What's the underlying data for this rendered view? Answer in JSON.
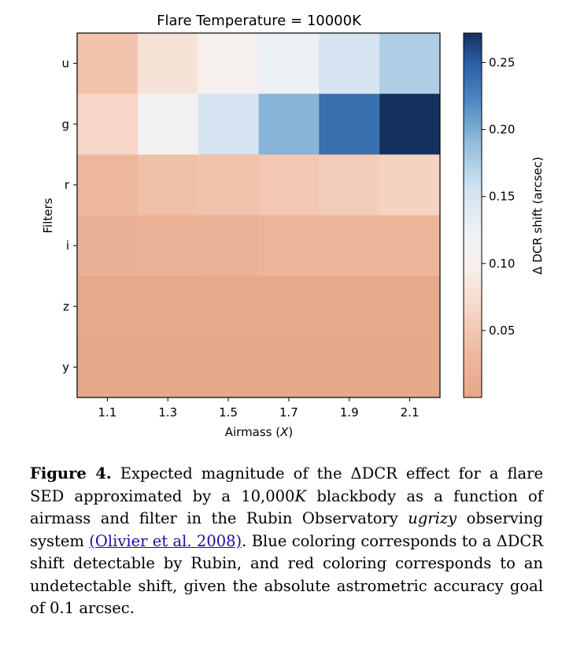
{
  "chart_data": {
    "type": "heatmap",
    "title": "Flare Temperature = 10000K",
    "xlabel": "Airmass (X)",
    "ylabel": "Filters",
    "x": [
      "1.1",
      "1.3",
      "1.5",
      "1.7",
      "1.9",
      "2.1"
    ],
    "y": [
      "u",
      "g",
      "r",
      "i",
      "z",
      "y"
    ],
    "values": [
      [
        0.045,
        0.08,
        0.105,
        0.125,
        0.15,
        0.175
      ],
      [
        0.065,
        0.11,
        0.15,
        0.195,
        0.238,
        0.272
      ],
      [
        0.03,
        0.04,
        0.045,
        0.05,
        0.055,
        0.062
      ],
      [
        0.018,
        0.02,
        0.022,
        0.024,
        0.026,
        0.028
      ],
      [
        0.004,
        0.004,
        0.004,
        0.004,
        0.004,
        0.004
      ],
      [
        0.002,
        0.002,
        0.002,
        0.002,
        0.002,
        0.002
      ]
    ],
    "colorbar": {
      "label": "Δ DCR shift (arcsec)",
      "range": [
        0.0,
        0.272
      ],
      "ticks": [
        0.05,
        0.1,
        0.15,
        0.2,
        0.25
      ],
      "tick_labels": [
        "0.05",
        "0.10",
        "0.15",
        "0.20",
        "0.25"
      ]
    },
    "colors": {
      "low": "#e6a789",
      "mid": "#f8f3f1",
      "high": "#14305e"
    }
  },
  "caption": {
    "label": "Figure 4.",
    "text_1": "Expected magnitude of the ΔDCR effect for a flare SED approximated by a 10,000",
    "text_K": "K",
    "text_2": "blackbody as a function of airmass and filter in the Rubin Observatory",
    "text_ugrizy": "ugrizy",
    "text_3": "observing system",
    "link_text": "(Olivier et al. 2008)",
    "text_4": ". Blue coloring corresponds to a ΔDCR shift detectable by Rubin, and red coloring corresponds to an undetectable shift, given the absolute astrometric accuracy goal of 0.1 arcsec."
  }
}
